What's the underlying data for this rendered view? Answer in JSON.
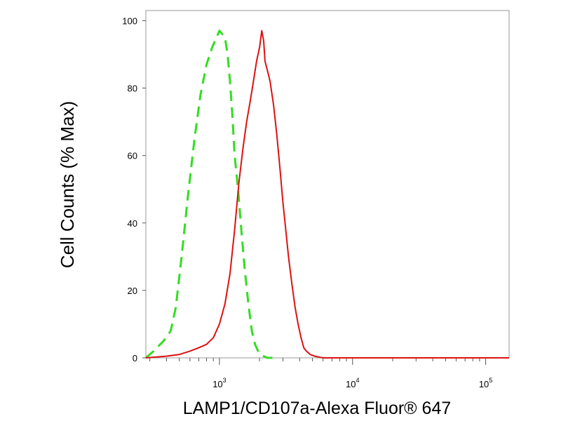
{
  "chart_data": {
    "type": "line",
    "title": "",
    "xlabel": "LAMP1/CD107a-Alexa Fluor® 647",
    "ylabel": "Cell Counts (% Max)",
    "x_scale": "log",
    "xlim": [
      280,
      150000
    ],
    "ylim": [
      0,
      103
    ],
    "x_ticks": [
      {
        "value": 1000,
        "base": "10",
        "exp": "3"
      },
      {
        "value": 10000,
        "base": "10",
        "exp": "4"
      },
      {
        "value": 100000,
        "base": "10",
        "exp": "5"
      }
    ],
    "y_ticks": [
      0,
      20,
      40,
      60,
      80,
      100
    ],
    "grid": false,
    "legend": "none",
    "series": [
      {
        "color": "#33dd22",
        "style": "dashed",
        "x": [
          280,
          320,
          380,
          430,
          470,
          520,
          580,
          650,
          720,
          800,
          880,
          950,
          1000,
          1050,
          1100,
          1150,
          1200,
          1250,
          1300,
          1380,
          1460,
          1550,
          1650,
          1750,
          1850,
          1950,
          2050,
          2150,
          2300,
          2500
        ],
        "y": [
          0,
          2,
          5,
          8,
          15,
          30,
          48,
          65,
          78,
          87,
          92,
          95,
          97,
          96,
          95,
          90,
          82,
          72,
          60,
          50,
          38,
          26,
          16,
          8,
          4,
          2,
          1,
          0.5,
          0,
          0
        ]
      },
      {
        "color": "#dd1111",
        "style": "solid",
        "x": [
          280,
          400,
          500,
          600,
          700,
          800,
          900,
          1000,
          1100,
          1200,
          1300,
          1400,
          1500,
          1600,
          1700,
          1800,
          1900,
          2000,
          2080,
          2150,
          2200,
          2300,
          2400,
          2550,
          2700,
          2850,
          3000,
          3150,
          3300,
          3500,
          3700,
          3900,
          4100,
          4300,
          4500,
          4800,
          5200,
          6000,
          8000,
          15000,
          50000,
          150000
        ],
        "y": [
          0,
          0.5,
          1,
          2,
          3,
          4,
          6,
          10,
          16,
          25,
          38,
          52,
          62,
          70,
          76,
          82,
          88,
          92,
          97,
          94,
          88,
          85,
          82,
          75,
          66,
          56,
          46,
          38,
          30,
          22,
          15,
          10,
          6,
          3,
          2,
          1,
          0.5,
          0,
          0,
          0,
          0,
          0
        ]
      }
    ]
  }
}
